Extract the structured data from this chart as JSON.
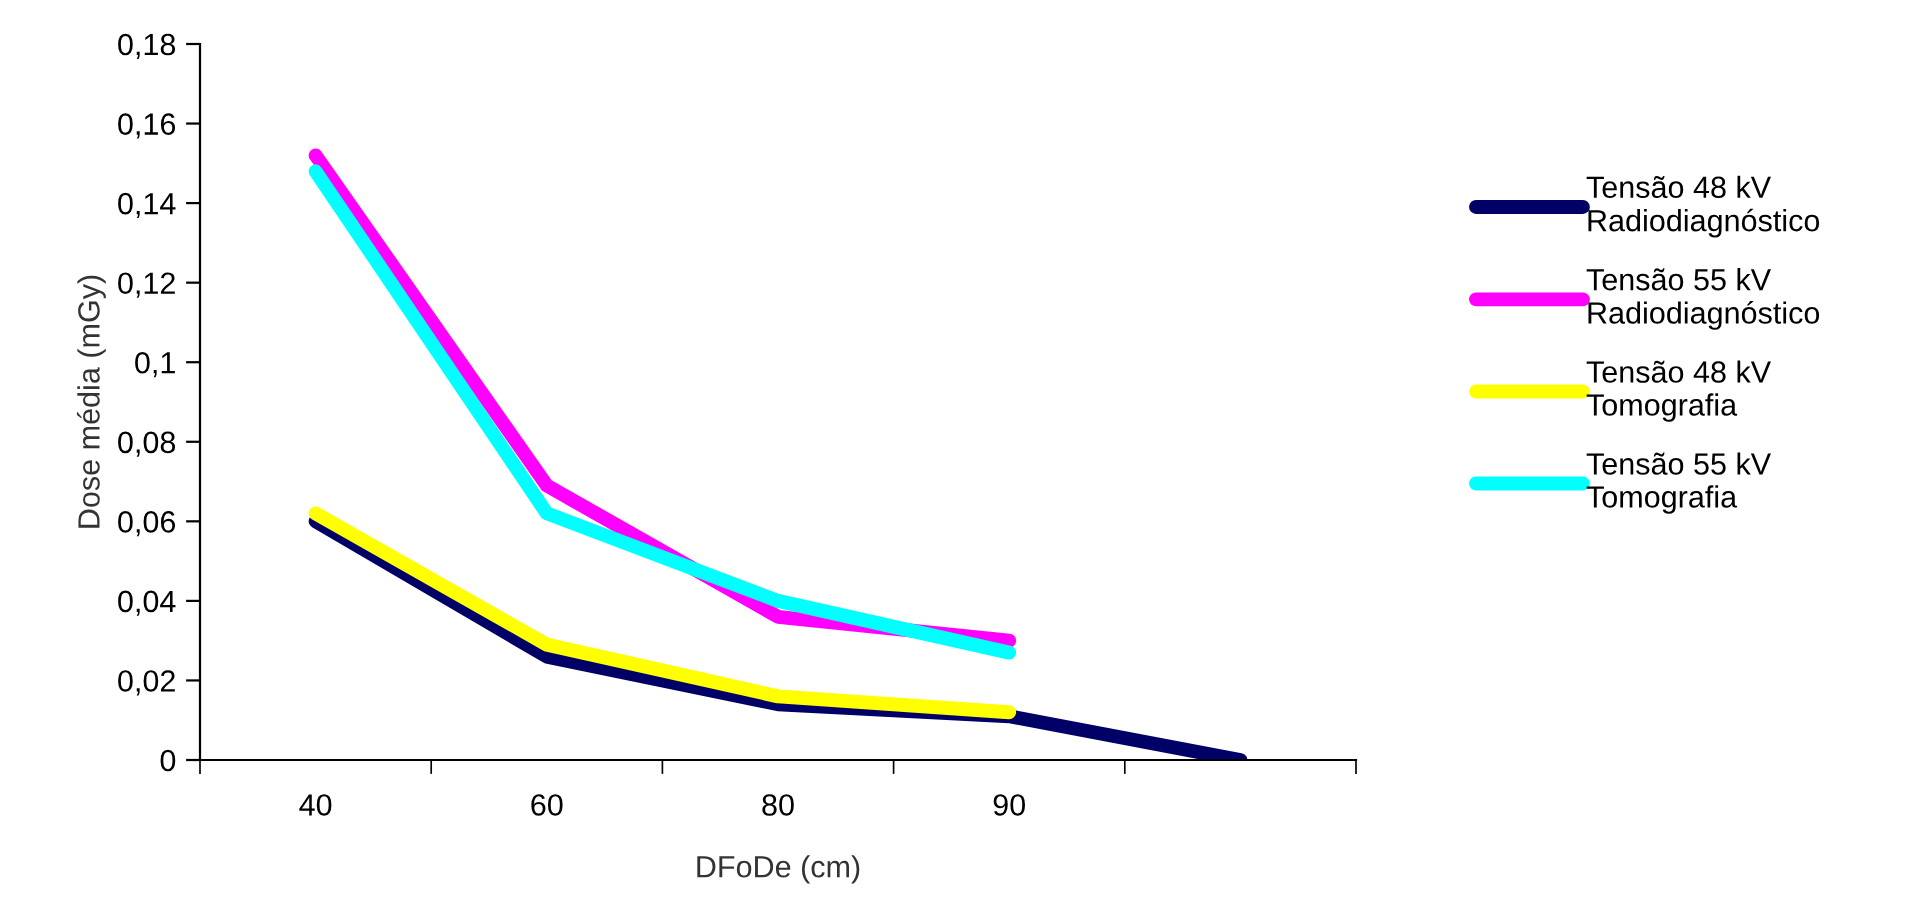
{
  "chart_data": {
    "type": "line",
    "xlabel": "DFoDe (cm)",
    "ylabel": "Dose média (mGy)",
    "categories": [
      "40",
      "60",
      "80",
      "90",
      null
    ],
    "series": [
      {
        "name": "Tensão 48 kV\nRadiodiagnóstico",
        "color": "#000066",
        "values": [
          0.06,
          0.026,
          0.014,
          0.011,
          0
        ]
      },
      {
        "name": "Tensão 55 kV\nRadiodiagnóstico",
        "color": "#ff00ff",
        "values": [
          0.152,
          0.069,
          0.036,
          0.03,
          null
        ]
      },
      {
        "name": "Tensão 48 kV\nTomografia",
        "color": "#ffff00",
        "values": [
          0.062,
          0.029,
          0.016,
          0.012,
          null
        ]
      },
      {
        "name": "Tensão 55 kV\nTomografia",
        "color": "#00ffff",
        "values": [
          0.148,
          0.062,
          0.04,
          0.027,
          null
        ]
      }
    ],
    "ylim": [
      0,
      0.18
    ],
    "yticks": [
      0,
      {
        "value": 0.02,
        "label": "0,02"
      },
      {
        "value": 0.04,
        "label": "0,04"
      },
      {
        "value": 0.06,
        "label": "0,06"
      },
      {
        "value": 0.08,
        "label": "0,08"
      },
      {
        "value": 0.1,
        "label": "0,1"
      },
      {
        "value": 0.12,
        "label": "0,12"
      },
      {
        "value": 0.14,
        "label": "0,14"
      },
      {
        "value": 0.16,
        "label": "0,16"
      },
      {
        "value": 0.18,
        "label": "0,18"
      }
    ],
    "grid": false,
    "legend": "right",
    "marker": "none",
    "line_style": "solid"
  }
}
